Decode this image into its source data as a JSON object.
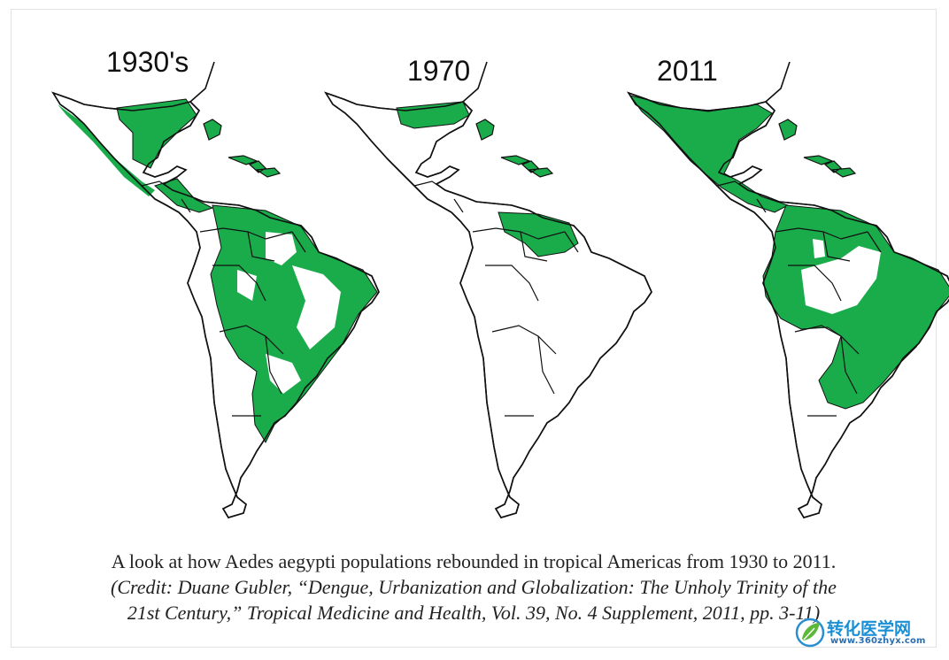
{
  "maps": [
    {
      "year_label": "1930's",
      "coverage": "widespread"
    },
    {
      "year_label": "1970",
      "coverage": "eradicated-except-north"
    },
    {
      "year_label": "2011",
      "coverage": "reinfested"
    }
  ],
  "colors": {
    "infested_green": "#1aab4b",
    "outline": "#111111",
    "land": "#ffffff"
  },
  "caption": {
    "main": "A look at how Aedes aegypti populations rebounded in tropical Americas from 1930 to 2011.",
    "credit_line1": "(Credit: Duane Gubler, “Dengue, Urbanization and Globalization: The Unholy Trinity of the",
    "credit_line2": "21st Century,” Tropical Medicine and Health, Vol. 39, No. 4 Supplement, 2011, pp. 3-11)"
  },
  "watermark": {
    "name": "转化医学网",
    "url": "www.360zhyx.com",
    "icon": "leaf-logo-icon"
  }
}
